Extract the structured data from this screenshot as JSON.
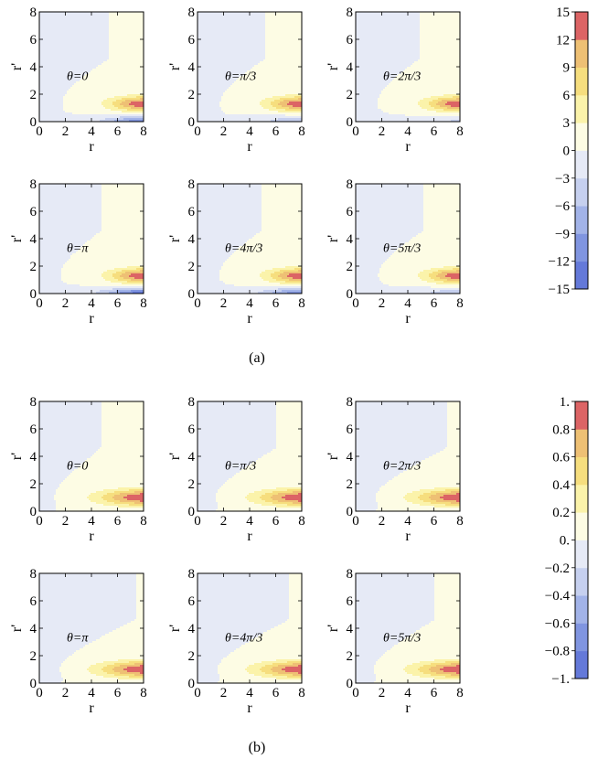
{
  "figure": {
    "caption_a": "(a)",
    "caption_b": "(b)"
  },
  "chart_data": [
    {
      "type": "contour",
      "group": "a",
      "xlabel": "r",
      "ylabel": "r'",
      "xlim": [
        0,
        8
      ],
      "ylim": [
        0,
        8
      ],
      "xticks": [
        "0",
        "2",
        "4",
        "6",
        "8"
      ],
      "yticks": [
        "0",
        "2",
        "4",
        "6",
        "8"
      ],
      "panels": [
        {
          "label": "θ=0",
          "k": 0,
          "neg": 0.8,
          "dip": false
        },
        {
          "label": "θ=π/3",
          "k": 1,
          "neg": 0.45,
          "dip": false
        },
        {
          "label": "θ=2π/3",
          "k": 2,
          "neg": 0.25,
          "dip": true
        },
        {
          "label": "θ=π",
          "k": 3,
          "neg": 1.0,
          "dip": true
        },
        {
          "label": "θ=4π/3",
          "k": 4,
          "neg": 0.8,
          "dip": true
        },
        {
          "label": "θ=5π/3",
          "k": 5,
          "neg": 0.4,
          "dip": true
        }
      ],
      "colorbar": {
        "min": -15,
        "max": 15,
        "ticks": [
          "15",
          "12",
          "9",
          "6",
          "3",
          "0",
          "−3",
          "−6",
          "−9",
          "−12",
          "−15"
        ],
        "levels": [
          -15,
          -12,
          -9,
          -6,
          -3,
          0,
          3,
          6,
          9,
          12,
          15
        ]
      }
    },
    {
      "type": "contour",
      "group": "b",
      "xlabel": "r",
      "ylabel": "r'",
      "xlim": [
        0,
        8
      ],
      "ylim": [
        0,
        8
      ],
      "xticks": [
        "0",
        "2",
        "4",
        "6",
        "8"
      ],
      "yticks": [
        "0",
        "2",
        "4",
        "6",
        "8"
      ],
      "panels": [
        {
          "label": "θ=0",
          "k": 0,
          "neg": 0,
          "dip": false
        },
        {
          "label": "θ=π/3",
          "k": 1,
          "neg": 0,
          "dip": false
        },
        {
          "label": "θ=2π/3",
          "k": 2,
          "neg": 0,
          "dip": false
        },
        {
          "label": "θ=π",
          "k": 3,
          "neg": 0,
          "dip": false
        },
        {
          "label": "θ=4π/3",
          "k": 4,
          "neg": 0,
          "dip": false
        },
        {
          "label": "θ=5π/3",
          "k": 5,
          "neg": 0,
          "dip": false
        }
      ],
      "colorbar": {
        "min": -1,
        "max": 1,
        "ticks": [
          "1.",
          "0.8",
          "0.6",
          "0.4",
          "0.2",
          "0.",
          "−0.2",
          "−0.4",
          "−0.6",
          "−0.8",
          "−1."
        ],
        "levels": [
          -1,
          -0.8,
          -0.6,
          -0.4,
          -0.2,
          0,
          0.2,
          0.4,
          0.6,
          0.8,
          1
        ]
      }
    }
  ],
  "colors": {
    "bin_colors": [
      "#6479d9",
      "#8095e0",
      "#a2b3e8",
      "#c6d0ef",
      "#e6eaf6",
      "#fdfce4",
      "#fbf3aa",
      "#f6de7e",
      "#eec074",
      "#e59a6c",
      "#dc6465"
    ],
    "contour_line": "#8a8aa8",
    "axis": "#000000"
  }
}
